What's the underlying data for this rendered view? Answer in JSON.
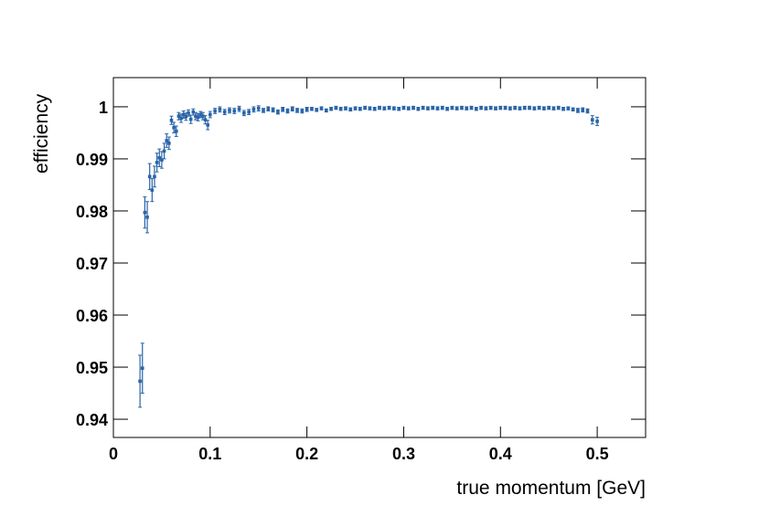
{
  "chart_data": {
    "type": "errorbar",
    "x_label": "true momentum [GeV]",
    "y_label": "efficiency",
    "xlim": [
      0,
      0.55
    ],
    "ylim": [
      0.9365,
      1.0056
    ],
    "xticks": [
      0,
      0.1,
      0.2,
      0.3,
      0.4,
      0.5
    ],
    "yticks": [
      0.94,
      0.95,
      0.96,
      0.97,
      0.98,
      0.99,
      1
    ],
    "series": [
      {
        "color": "#2a64a8",
        "x": [
          0.0275,
          0.03,
          0.0325,
          0.035,
          0.0375,
          0.04,
          0.0425,
          0.045,
          0.0475,
          0.05,
          0.0525,
          0.055,
          0.0575,
          0.06,
          0.0625,
          0.065,
          0.0675,
          0.07,
          0.0725,
          0.075,
          0.0775,
          0.08,
          0.0825,
          0.085,
          0.0875,
          0.09,
          0.0925,
          0.095,
          0.0975,
          0.1,
          0.105,
          0.11,
          0.115,
          0.12,
          0.125,
          0.13,
          0.135,
          0.14,
          0.145,
          0.15,
          0.155,
          0.16,
          0.165,
          0.17,
          0.175,
          0.18,
          0.185,
          0.19,
          0.195,
          0.2,
          0.205,
          0.21,
          0.215,
          0.22,
          0.225,
          0.23,
          0.235,
          0.24,
          0.245,
          0.25,
          0.255,
          0.26,
          0.265,
          0.27,
          0.275,
          0.28,
          0.285,
          0.29,
          0.295,
          0.3,
          0.305,
          0.31,
          0.315,
          0.32,
          0.325,
          0.33,
          0.335,
          0.34,
          0.345,
          0.35,
          0.355,
          0.36,
          0.365,
          0.37,
          0.375,
          0.38,
          0.385,
          0.39,
          0.395,
          0.4,
          0.405,
          0.41,
          0.415,
          0.42,
          0.425,
          0.43,
          0.435,
          0.44,
          0.445,
          0.45,
          0.455,
          0.46,
          0.465,
          0.47,
          0.475,
          0.48,
          0.485,
          0.49,
          0.495,
          0.5
        ],
        "values": [
          0.9473,
          0.9498,
          0.9797,
          0.9788,
          0.9866,
          0.984,
          0.9866,
          0.9893,
          0.9902,
          0.9898,
          0.9915,
          0.9935,
          0.993,
          0.9974,
          0.996,
          0.9953,
          0.9982,
          0.9978,
          0.9985,
          0.9981,
          0.9988,
          0.9976,
          0.999,
          0.9982,
          0.998,
          0.9985,
          0.9982,
          0.9975,
          0.9965,
          0.9985,
          0.9992,
          0.9995,
          0.999,
          0.9993,
          0.9992,
          0.9996,
          0.9988,
          0.999,
          0.9995,
          0.9997,
          0.9993,
          0.9996,
          0.9994,
          0.999,
          0.9995,
          0.9992,
          0.9996,
          0.9993,
          0.9992,
          0.9995,
          0.9996,
          0.9994,
          0.9997,
          0.9993,
          0.9996,
          0.9998,
          0.9996,
          0.9997,
          0.9995,
          0.9997,
          0.9996,
          0.9998,
          0.9997,
          0.9996,
          0.9998,
          0.9997,
          0.9998,
          0.9997,
          0.9996,
          0.9998,
          0.9997,
          0.9998,
          0.9996,
          0.9998,
          0.9997,
          0.9998,
          0.9997,
          0.9998,
          0.9996,
          0.9998,
          0.9997,
          0.9998,
          0.9997,
          0.9998,
          0.9996,
          0.9998,
          0.9997,
          0.9998,
          0.9997,
          0.9998,
          0.9998,
          0.9997,
          0.9998,
          0.9997,
          0.9998,
          0.9998,
          0.9997,
          0.9998,
          0.9997,
          0.9998,
          0.9997,
          0.9998,
          0.9996,
          0.9997,
          0.9995,
          0.9993,
          0.9994,
          0.9992,
          0.9975,
          0.9972
        ],
        "errors": [
          0.005,
          0.0048,
          0.003,
          0.003,
          0.0025,
          0.0022,
          0.002,
          0.0018,
          0.0017,
          0.0016,
          0.0015,
          0.0013,
          0.0012,
          0.0008,
          0.001,
          0.001,
          0.0007,
          0.0008,
          0.0007,
          0.0007,
          0.0006,
          0.0008,
          0.0006,
          0.0007,
          0.0007,
          0.0006,
          0.0007,
          0.0008,
          0.0009,
          0.0006,
          0.0005,
          0.0005,
          0.0005,
          0.0005,
          0.0005,
          0.0005,
          0.0005,
          0.0005,
          0.0005,
          0.0005,
          0.0004,
          0.0004,
          0.0004,
          0.0004,
          0.0004,
          0.0004,
          0.0004,
          0.0004,
          0.0004,
          0.0004,
          0.0003,
          0.0003,
          0.0003,
          0.0003,
          0.0003,
          0.0003,
          0.0003,
          0.0003,
          0.0003,
          0.0003,
          0.0003,
          0.0003,
          0.0003,
          0.0003,
          0.0003,
          0.0003,
          0.0003,
          0.0003,
          0.0003,
          0.0003,
          0.0003,
          0.0003,
          0.0003,
          0.0003,
          0.0003,
          0.0003,
          0.0003,
          0.0003,
          0.0003,
          0.0003,
          0.0003,
          0.0003,
          0.0003,
          0.0003,
          0.0003,
          0.0003,
          0.0003,
          0.0003,
          0.0003,
          0.0003,
          0.0003,
          0.0003,
          0.0003,
          0.0003,
          0.0003,
          0.0003,
          0.0003,
          0.0003,
          0.0003,
          0.0003,
          0.0003,
          0.0003,
          0.0003,
          0.0003,
          0.0003,
          0.0004,
          0.0004,
          0.0004,
          0.0008,
          0.0008
        ]
      }
    ]
  }
}
